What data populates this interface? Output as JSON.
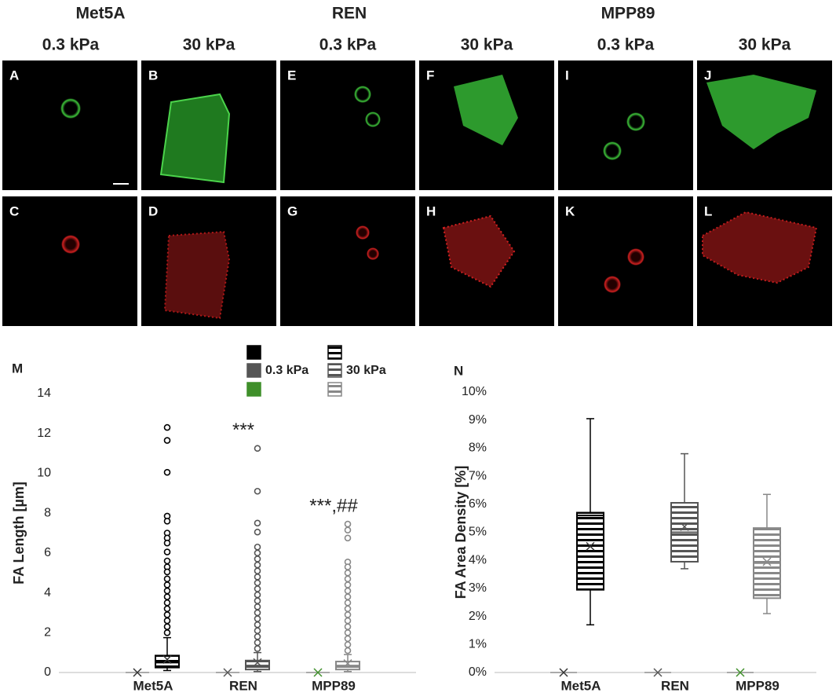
{
  "groups": [
    "Met5A",
    "REN",
    "MPP89"
  ],
  "columns": [
    "0.3 kPa",
    "30 kPa",
    "0.3 kPa",
    "30 kPa",
    "0.3 kPa",
    "30 kPa"
  ],
  "panels": [
    "A",
    "B",
    "E",
    "F",
    "I",
    "J",
    "C",
    "D",
    "G",
    "H",
    "K",
    "L"
  ],
  "chart_data": [
    {
      "type": "box",
      "panel": "M",
      "y_label": "FA Length [µm]",
      "categories": [
        "Met5A",
        "REN",
        "MPP89"
      ],
      "ylim": [
        0,
        14
      ],
      "yticks": [
        0,
        2,
        4,
        6,
        8,
        10,
        12,
        14
      ],
      "grid": false,
      "legend": true,
      "annotations": [
        "***",
        "***,##"
      ],
      "series": [
        {
          "name": "0.3 kPa",
          "colors": [
            "#000000",
            "#555555",
            "#3f8f2a"
          ],
          "min": [
            0,
            0,
            0
          ],
          "q1": [
            0,
            0,
            0
          ],
          "median": [
            0,
            0,
            0
          ],
          "q3": [
            0,
            0,
            0
          ],
          "max": [
            0,
            0,
            0
          ],
          "mean": [
            0,
            0,
            0
          ],
          "outliers": [
            [],
            [],
            []
          ]
        },
        {
          "name": "30 kPa",
          "colors": [
            "#000000",
            "#555555",
            "#888888"
          ],
          "min": [
            0.1,
            0.05,
            0.05
          ],
          "q1": [
            0.25,
            0.15,
            0.15
          ],
          "median": [
            0.5,
            0.35,
            0.35
          ],
          "q3": [
            0.85,
            0.6,
            0.55
          ],
          "max": [
            1.75,
            1.0,
            0.9
          ],
          "mean": [
            0.65,
            0.5,
            0.45
          ],
          "outliers": [
            [
              12.3,
              11.65,
              10.05,
              7.85,
              7.6,
              7.0,
              6.75,
              6.5,
              6.05,
              5.6,
              5.3,
              5.05,
              4.7,
              4.4,
              4.1,
              3.8,
              3.5,
              3.2,
              2.9,
              2.6,
              2.3,
              2.0
            ],
            [
              11.25,
              9.1,
              7.5,
              7.05,
              6.3,
              6.0,
              5.7,
              5.4,
              5.1,
              4.8,
              4.5,
              4.2,
              3.9,
              3.6,
              3.3,
              3.0,
              2.7,
              2.4,
              2.1,
              1.8,
              1.5,
              1.2
            ],
            [
              7.45,
              7.15,
              6.75,
              5.55,
              5.3,
              5.0,
              4.7,
              4.4,
              4.1,
              3.8,
              3.5,
              3.2,
              2.9,
              2.6,
              2.3,
              2.0,
              1.7,
              1.4,
              1.1
            ]
          ]
        }
      ]
    },
    {
      "type": "box",
      "panel": "N",
      "y_label": "FA Area Density [%]",
      "categories": [
        "Met5A",
        "REN",
        "MPP89"
      ],
      "ylim": [
        0,
        10
      ],
      "yticks": [
        {
          "value": 0,
          "label": "0%"
        },
        {
          "value": 1,
          "label": "1%"
        },
        {
          "value": 2,
          "label": "2%"
        },
        {
          "value": 3,
          "label": "3%"
        },
        {
          "value": 4,
          "label": "4%"
        },
        {
          "value": 5,
          "label": "5%"
        },
        {
          "value": 6,
          "label": "6%"
        },
        {
          "value": 7,
          "label": "7%"
        },
        {
          "value": 8,
          "label": "8%"
        },
        {
          "value": 9,
          "label": "9%"
        },
        {
          "value": 10,
          "label": "10%"
        }
      ],
      "grid": false,
      "legend": false,
      "series": [
        {
          "name": "0.3 kPa",
          "colors": [
            "#000000",
            "#555555",
            "#3f8f2a"
          ],
          "min": [
            0,
            0,
            0
          ],
          "q1": [
            0,
            0,
            0
          ],
          "median": [
            0,
            0,
            0
          ],
          "q3": [
            0,
            0,
            0
          ],
          "max": [
            0,
            0,
            0
          ],
          "mean": [
            0,
            0,
            0
          ]
        },
        {
          "name": "30 kPa",
          "colors": [
            "#000000",
            "#555555",
            "#888888"
          ],
          "min": [
            1.7,
            3.7,
            2.1
          ],
          "q1": [
            2.95,
            3.95,
            2.65
          ],
          "median": [
            5.6,
            5.0,
            3.9
          ],
          "q3": [
            5.7,
            6.05,
            5.15
          ],
          "max": [
            9.05,
            7.8,
            6.35
          ],
          "mean": [
            4.5,
            5.2,
            3.95
          ]
        }
      ]
    }
  ]
}
